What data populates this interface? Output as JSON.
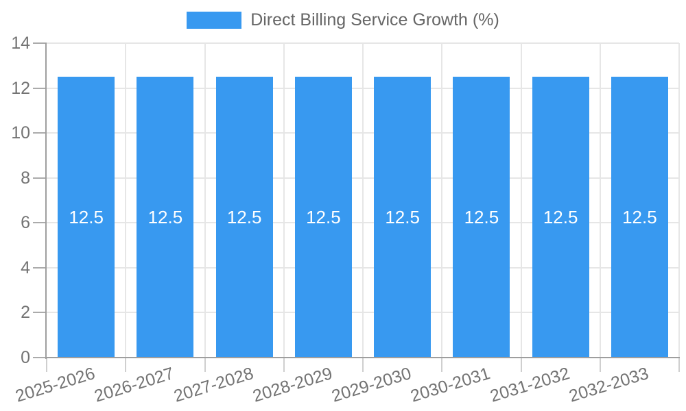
{
  "legend": {
    "label": "Direct Billing Service Growth (%)"
  },
  "chart_data": {
    "type": "bar",
    "title": "Direct Billing Service Growth (%)",
    "categories": [
      "2025-2026",
      "2026-2027",
      "2027-2028",
      "2028-2029",
      "2029-2030",
      "2030-2031",
      "2031-2032",
      "2032-2033"
    ],
    "values": [
      12.5,
      12.5,
      12.5,
      12.5,
      12.5,
      12.5,
      12.5,
      12.5
    ],
    "bar_value_labels": [
      "12.5",
      "12.5",
      "12.5",
      "12.5",
      "12.5",
      "12.5",
      "12.5",
      "12.5"
    ],
    "xlabel": "",
    "ylabel": "",
    "ylim": [
      0,
      14
    ],
    "yticks": [
      0,
      2,
      4,
      6,
      8,
      10,
      12,
      14
    ],
    "grid": true,
    "legend_position": "top-center",
    "x_tick_rotation_deg": -17,
    "colors": {
      "bar": "#3899F0",
      "bar_value_label": "#ffffff",
      "axis_label": "#737373",
      "legend_text": "#666666",
      "gridline": "#e6e6e6",
      "axis_line": "#9e9e9e"
    }
  }
}
